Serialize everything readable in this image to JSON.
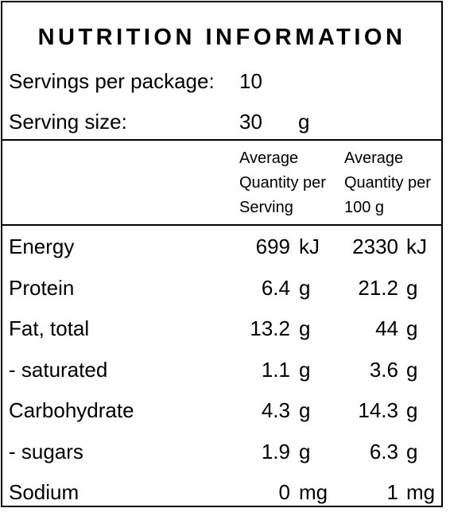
{
  "title": "NUTRITION INFORMATION",
  "servings_per_package": {
    "label": "Servings per package:",
    "value": "10"
  },
  "serving_size": {
    "label": "Serving size:",
    "value": "30",
    "unit": "g"
  },
  "column_headers": {
    "per_serving": [
      "Average",
      "Quantity per",
      "Serving"
    ],
    "per_100g": [
      "Average",
      "Quantity per",
      "100 g"
    ]
  },
  "rows": [
    {
      "name": "Energy",
      "per_serving": "699",
      "per_serving_unit": "kJ",
      "per_100g": "2330",
      "per_100g_unit": "kJ"
    },
    {
      "name": "Protein",
      "per_serving": "6.4",
      "per_serving_unit": "g",
      "per_100g": "21.2",
      "per_100g_unit": "g"
    },
    {
      "name": "Fat, total",
      "per_serving": "13.2",
      "per_serving_unit": "g",
      "per_100g": "44",
      "per_100g_unit": "g"
    },
    {
      "name": "- saturated",
      "per_serving": "1.1",
      "per_serving_unit": "g",
      "per_100g": "3.6",
      "per_100g_unit": "g"
    },
    {
      "name": "Carbohydrate",
      "per_serving": "4.3",
      "per_serving_unit": "g",
      "per_100g": "14.3",
      "per_100g_unit": "g"
    },
    {
      "name": "- sugars",
      "per_serving": "1.9",
      "per_serving_unit": "g",
      "per_100g": "6.3",
      "per_100g_unit": "g"
    },
    {
      "name": "Sodium",
      "per_serving": "0",
      "per_serving_unit": "mg",
      "per_100g": "1",
      "per_100g_unit": "mg"
    }
  ]
}
